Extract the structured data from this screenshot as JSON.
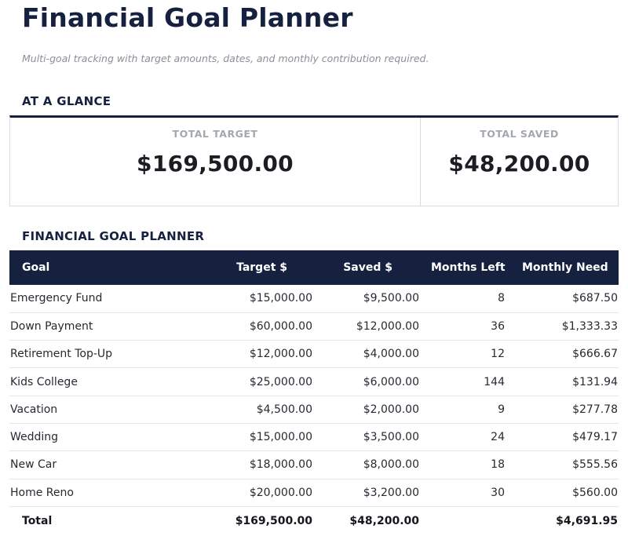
{
  "page": {
    "title": "Financial Goal Planner",
    "subtitle": "Multi-goal tracking with target amounts, dates, and monthly contribution required."
  },
  "glance": {
    "heading": "AT A GLANCE",
    "total_target_label": "TOTAL TARGET",
    "total_target_value": "$169,500.00",
    "total_saved_label": "TOTAL SAVED",
    "total_saved_value": "$48,200.00"
  },
  "planner": {
    "heading": "FINANCIAL GOAL PLANNER",
    "columns": [
      "Goal",
      "Target $",
      "Saved $",
      "Months Left",
      "Monthly Need"
    ],
    "rows": [
      {
        "goal": "Emergency Fund",
        "target": "$15,000.00",
        "saved": "$9,500.00",
        "months": "8",
        "need": "$687.50"
      },
      {
        "goal": "Down Payment",
        "target": "$60,000.00",
        "saved": "$12,000.00",
        "months": "36",
        "need": "$1,333.33"
      },
      {
        "goal": "Retirement Top-Up",
        "target": "$12,000.00",
        "saved": "$4,000.00",
        "months": "12",
        "need": "$666.67"
      },
      {
        "goal": "Kids College",
        "target": "$25,000.00",
        "saved": "$6,000.00",
        "months": "144",
        "need": "$131.94"
      },
      {
        "goal": "Vacation",
        "target": "$4,500.00",
        "saved": "$2,000.00",
        "months": "9",
        "need": "$277.78"
      },
      {
        "goal": "Wedding",
        "target": "$15,000.00",
        "saved": "$3,500.00",
        "months": "24",
        "need": "$479.17"
      },
      {
        "goal": "New Car",
        "target": "$18,000.00",
        "saved": "$8,000.00",
        "months": "18",
        "need": "$555.56"
      },
      {
        "goal": "Home Reno",
        "target": "$20,000.00",
        "saved": "$3,200.00",
        "months": "30",
        "need": "$560.00"
      }
    ],
    "total": {
      "goal": "Total",
      "target": "$169,500.00",
      "saved": "$48,200.00",
      "months": "",
      "need": "$4,691.95"
    }
  },
  "colors": {
    "header_bg": "#15213f",
    "title": "#15213f"
  }
}
